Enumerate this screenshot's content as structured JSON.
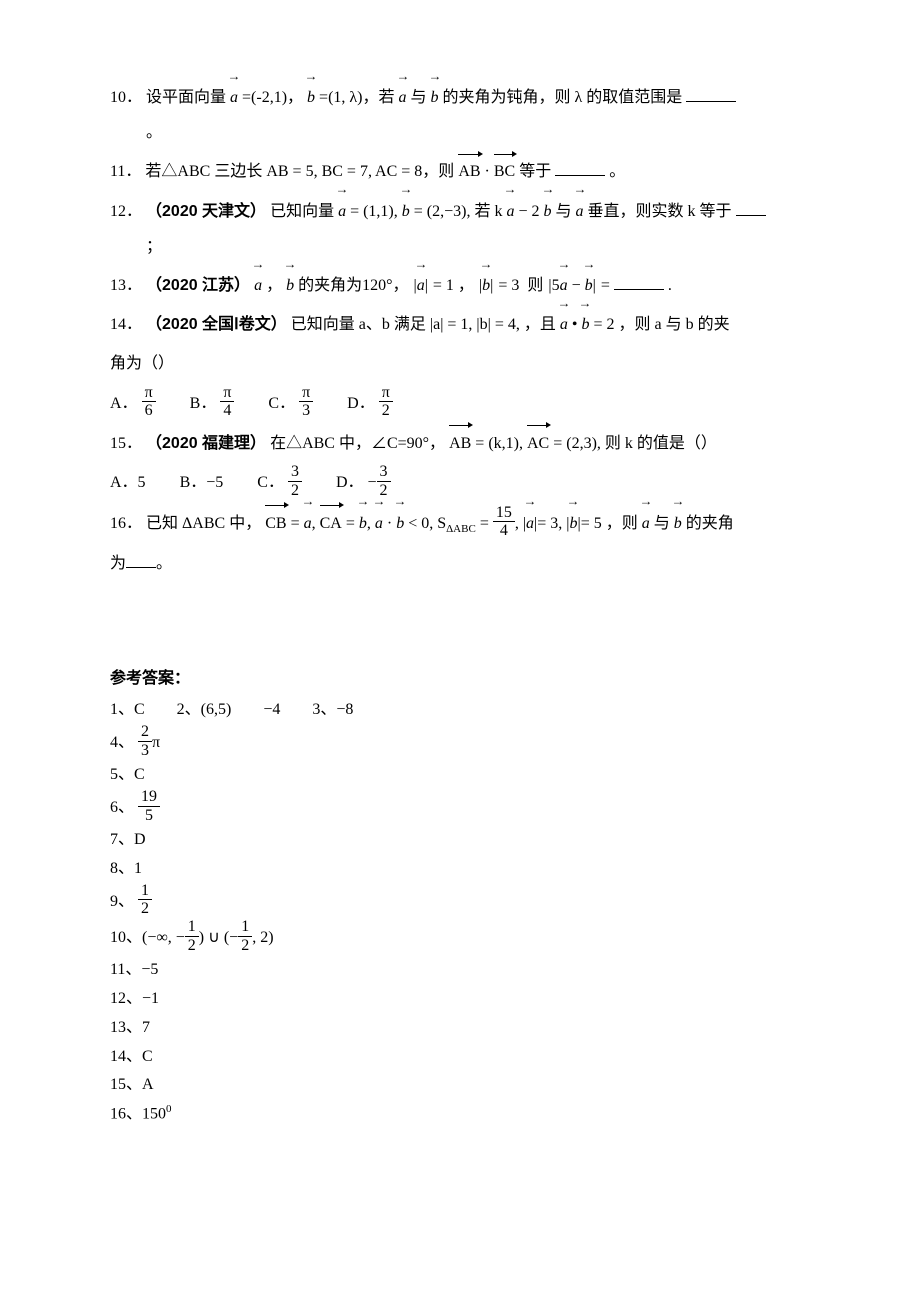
{
  "q10": {
    "num": "10．",
    "t1": "设平面向量",
    "a": "a",
    "eq1": "=(-2,1)，",
    "b": "b",
    "eq2": "=(1, λ)，若",
    "t2": "与",
    "t3": "的夹角为钝角，则 λ 的取值范围是",
    "tail": "。"
  },
  "q11": {
    "num": "11．",
    "t1": "若△ABC 三边长 AB = 5, BC = 7, AC = 8，则",
    "AB": "AB",
    "dot": "·",
    "BC": "BC",
    "t2": "等于",
    "tail": "。"
  },
  "q12": {
    "num": "12．",
    "src": "（2020 天津文）",
    "t1": "已知向量",
    "a": "a",
    "eq1": "= (1,1),",
    "b": "b",
    "eq2": "= (2,−3), 若 k",
    "t2": "− 2",
    "t3": "与",
    "t4": "垂直，则实数 k 等于",
    "tail": "；"
  },
  "q13": {
    "num": "13．",
    "src": "（2020 江苏）",
    "a": "a",
    "comma": "，",
    "b": "b",
    "t1": "的夹角为120°，",
    "abs_a": "= 1",
    "sep": "，",
    "abs_b": "= 3",
    "then": "则",
    "expr": "5",
    "minus": "−",
    "eq": "=",
    "tail": "."
  },
  "q14": {
    "num": "14．",
    "src": "（2020 全国Ⅰ卷文）",
    "t1": "已知向量 a、b 满足",
    "abs_a": "|a| = 1, |b| = 4,",
    "t2": "，且",
    "adotb": "= 2",
    "t3": "，则 a 与 b 的夹",
    "t4": "角为（）",
    "opts": {
      "A": "A．",
      "B": "B．",
      "C": "C．",
      "D": "D．",
      "pi": "π",
      "d": [
        "6",
        "4",
        "3",
        "2"
      ]
    }
  },
  "q15": {
    "num": "15．",
    "src": "（2020 福建理）",
    "t1": "在△ABC 中，∠C=90°，",
    "AB": "AB",
    "eq1": "= (k,1),",
    "AC": "AC",
    "eq2": "= (2,3), 则 k 的值是（）",
    "opts": {
      "A": "A．5",
      "B": "B．−5",
      "C": "C．",
      "D": "D．",
      "n": "3",
      "d": "2"
    }
  },
  "q16": {
    "num": "16．",
    "t1": "已知 ΔABC 中，",
    "CB": "CB",
    "eqa": "=",
    "a": "a",
    "c1": ",",
    "CA": "CA",
    "eqb": "=",
    "b": "b",
    "c2": ",",
    "dot": "·",
    "lt": "< 0, S",
    "sabc": "ΔABC",
    "eq15": "=",
    "n": "15",
    "d": "4",
    "c3": ", |",
    "aa": "a",
    "a3": "|= 3, |",
    "bb": "b",
    "b5": "|= 5",
    "t2": "，则",
    "t3": "与",
    "t4": "的夹角",
    "line2": "为",
    "tail": "。"
  },
  "answers": {
    "title": "参考答案：",
    "l1": "1、C　　2、(6,5)　　−4　　3、−8",
    "l4": "4、",
    "f4n": "2",
    "f4d": "3",
    "pi": "π",
    "l5": "5、C",
    "l6": "6、",
    "f6n": "19",
    "f6d": "5",
    "l7": "7、D",
    "l8": "8、1",
    "l9": "9、",
    "f9n": "1",
    "f9d": "2",
    "l10": "10、(−∞, −",
    "f10an": "1",
    "f10ad": "2",
    "mid": ") ∪ (−",
    "f10bn": "1",
    "f10bd": "2",
    "end": ", 2)",
    "l11": "11、−5",
    "l12": "12、−1",
    "l13": "13、7",
    "l14": "14、C",
    "l15": "15、A",
    "l16": "16、150",
    "deg": "0"
  }
}
